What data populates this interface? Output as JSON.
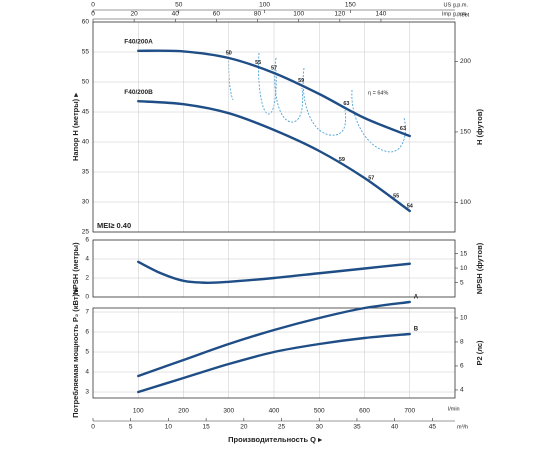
{
  "flow_axis": {
    "label": "Производительность Q ▸",
    "unit": "l/min",
    "xlim": [
      0,
      800
    ],
    "xticks": [
      100,
      200,
      300,
      400,
      500,
      600,
      700
    ]
  },
  "m3h_axis": {
    "unit": "m³/h",
    "xlim": [
      0,
      48
    ],
    "xticks": [
      0,
      5,
      10,
      15,
      20,
      25,
      30,
      35,
      40,
      45
    ]
  },
  "us_gpm_axis": {
    "unit": "US g.p.m.",
    "xlim": [
      0,
      211
    ],
    "xticks": [
      0,
      50,
      100,
      150
    ]
  },
  "imp_gpm_axis": {
    "unit": "Imp g.p.m.",
    "xlim": [
      0,
      176
    ],
    "xticks": [
      0,
      20,
      40,
      60,
      80,
      100,
      120,
      140
    ]
  },
  "chart_data": [
    {
      "type": "line",
      "ylabel": "Напор H (метры) ▸",
      "y2label": "H (футов)",
      "y2unit": "feet",
      "ylim": [
        25,
        60
      ],
      "yticks": [
        25,
        30,
        35,
        40,
        45,
        50,
        55,
        60
      ],
      "y2lim": [
        79,
        228
      ],
      "y2ticks": [
        100,
        150,
        200
      ],
      "grid": true,
      "x": [
        100,
        200,
        300,
        400,
        500,
        600,
        700
      ],
      "series": [
        {
          "name": "F40/200A",
          "color": "#1f4e87",
          "values": [
            55.2,
            55.1,
            54,
            51.5,
            48,
            44,
            41
          ],
          "efficiency_labels": [
            {
              "x": 300,
              "value": 50
            },
            {
              "x": 365,
              "value": 55
            },
            {
              "x": 400,
              "value": 57
            },
            {
              "x": 460,
              "value": 59
            },
            {
              "x": 560,
              "value": 63
            },
            {
              "x": 685,
              "value": 63
            }
          ]
        },
        {
          "name": "F40/200B",
          "color": "#1f4e87",
          "values": [
            46.8,
            46.3,
            44.8,
            42,
            38.5,
            34,
            28.5
          ],
          "efficiency_labels": [
            {
              "x": 550,
              "value": 59
            },
            {
              "x": 615,
              "value": 57
            },
            {
              "x": 670,
              "value": 55
            },
            {
              "x": 700,
              "value": 54
            }
          ]
        }
      ],
      "efficiency_note": "η = 64%",
      "mei": "MEI≥ 0.40"
    },
    {
      "type": "line",
      "ylabel": "NPSH (метры)",
      "y2label": "NPSH (футов)",
      "ylim": [
        0,
        6
      ],
      "yticks": [
        0,
        2,
        4,
        6
      ],
      "y2lim": [
        0,
        19.7
      ],
      "y2ticks": [
        5,
        10,
        15
      ],
      "grid": true,
      "x": [
        100,
        150,
        200,
        250,
        300,
        400,
        500,
        600,
        700
      ],
      "series": [
        {
          "name": null,
          "color": "#1f4e87",
          "values": [
            3.7,
            2.5,
            1.7,
            1.5,
            1.6,
            2.0,
            2.5,
            3.0,
            3.5
          ]
        }
      ]
    },
    {
      "type": "line",
      "ylabel": "Потребляемая мощность P₂ (кВт) ▸",
      "y2label": "P2 (лс)",
      "ylim": [
        2.7,
        7.2
      ],
      "yticks": [
        3,
        4,
        5,
        6,
        7
      ],
      "y2lim": [
        3.33,
        10.83
      ],
      "y2ticks": [
        4,
        6,
        8,
        10
      ],
      "grid": true,
      "x": [
        100,
        200,
        300,
        400,
        500,
        600,
        700
      ],
      "series": [
        {
          "name": "A",
          "color": "#1f4e87",
          "values": [
            3.8,
            4.6,
            5.4,
            6.1,
            6.7,
            7.2,
            7.5
          ]
        },
        {
          "name": "B",
          "color": "#1f4e87",
          "values": [
            3.0,
            3.7,
            4.4,
            5.0,
            5.4,
            5.7,
            5.9
          ]
        }
      ]
    }
  ]
}
